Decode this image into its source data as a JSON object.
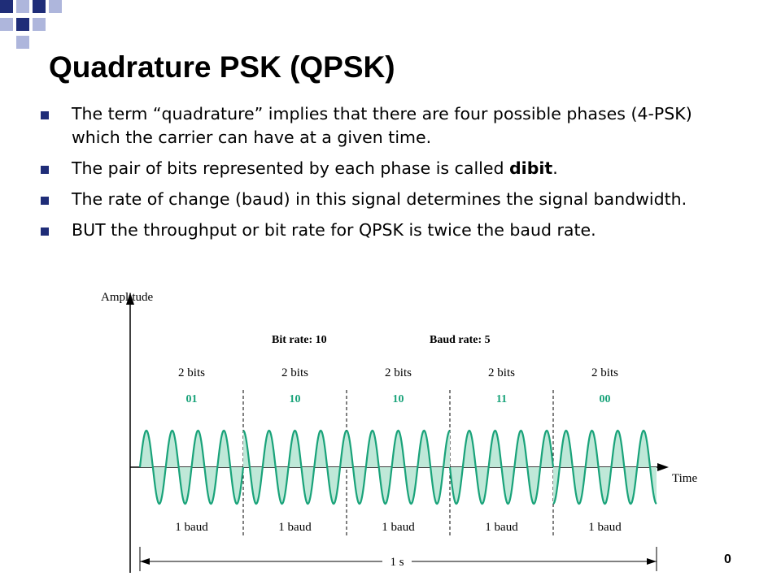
{
  "slide": {
    "title": "Quadrature PSK (QPSK)",
    "page_number": "0"
  },
  "bullets": [
    {
      "text": "The term “quadrature” implies that there are four possible phases (4-PSK) which the carrier can have at a given time."
    },
    {
      "text_before": "The pair of bits represented by each phase is called ",
      "emphasis": "dibit",
      "text_after": "."
    },
    {
      "text": "The rate of change (baud) in this signal determines the signal bandwidth."
    },
    {
      "text": "BUT the throughput or bit rate for QPSK is twice the baud rate."
    }
  ],
  "diagram": {
    "y_axis_label": "Amplitude",
    "x_axis_label": "Time",
    "bit_rate_label": "Bit rate: 10",
    "baud_rate_label": "Baud rate: 5",
    "segments": [
      {
        "bits_label": "2 bits",
        "dibit": "01",
        "baud_label": "1 baud"
      },
      {
        "bits_label": "2 bits",
        "dibit": "10",
        "baud_label": "1 baud"
      },
      {
        "bits_label": "2 bits",
        "dibit": "10",
        "baud_label": "1 baud"
      },
      {
        "bits_label": "2 bits",
        "dibit": "11",
        "baud_label": "1 baud"
      },
      {
        "bits_label": "2 bits",
        "dibit": "00",
        "baud_label": "1 baud"
      }
    ],
    "duration_label": "1 s",
    "colors": {
      "wave": "#1aa37a",
      "fill": "#bfe8d8",
      "dibit": "#1aa37a",
      "axis": "#000000"
    }
  }
}
